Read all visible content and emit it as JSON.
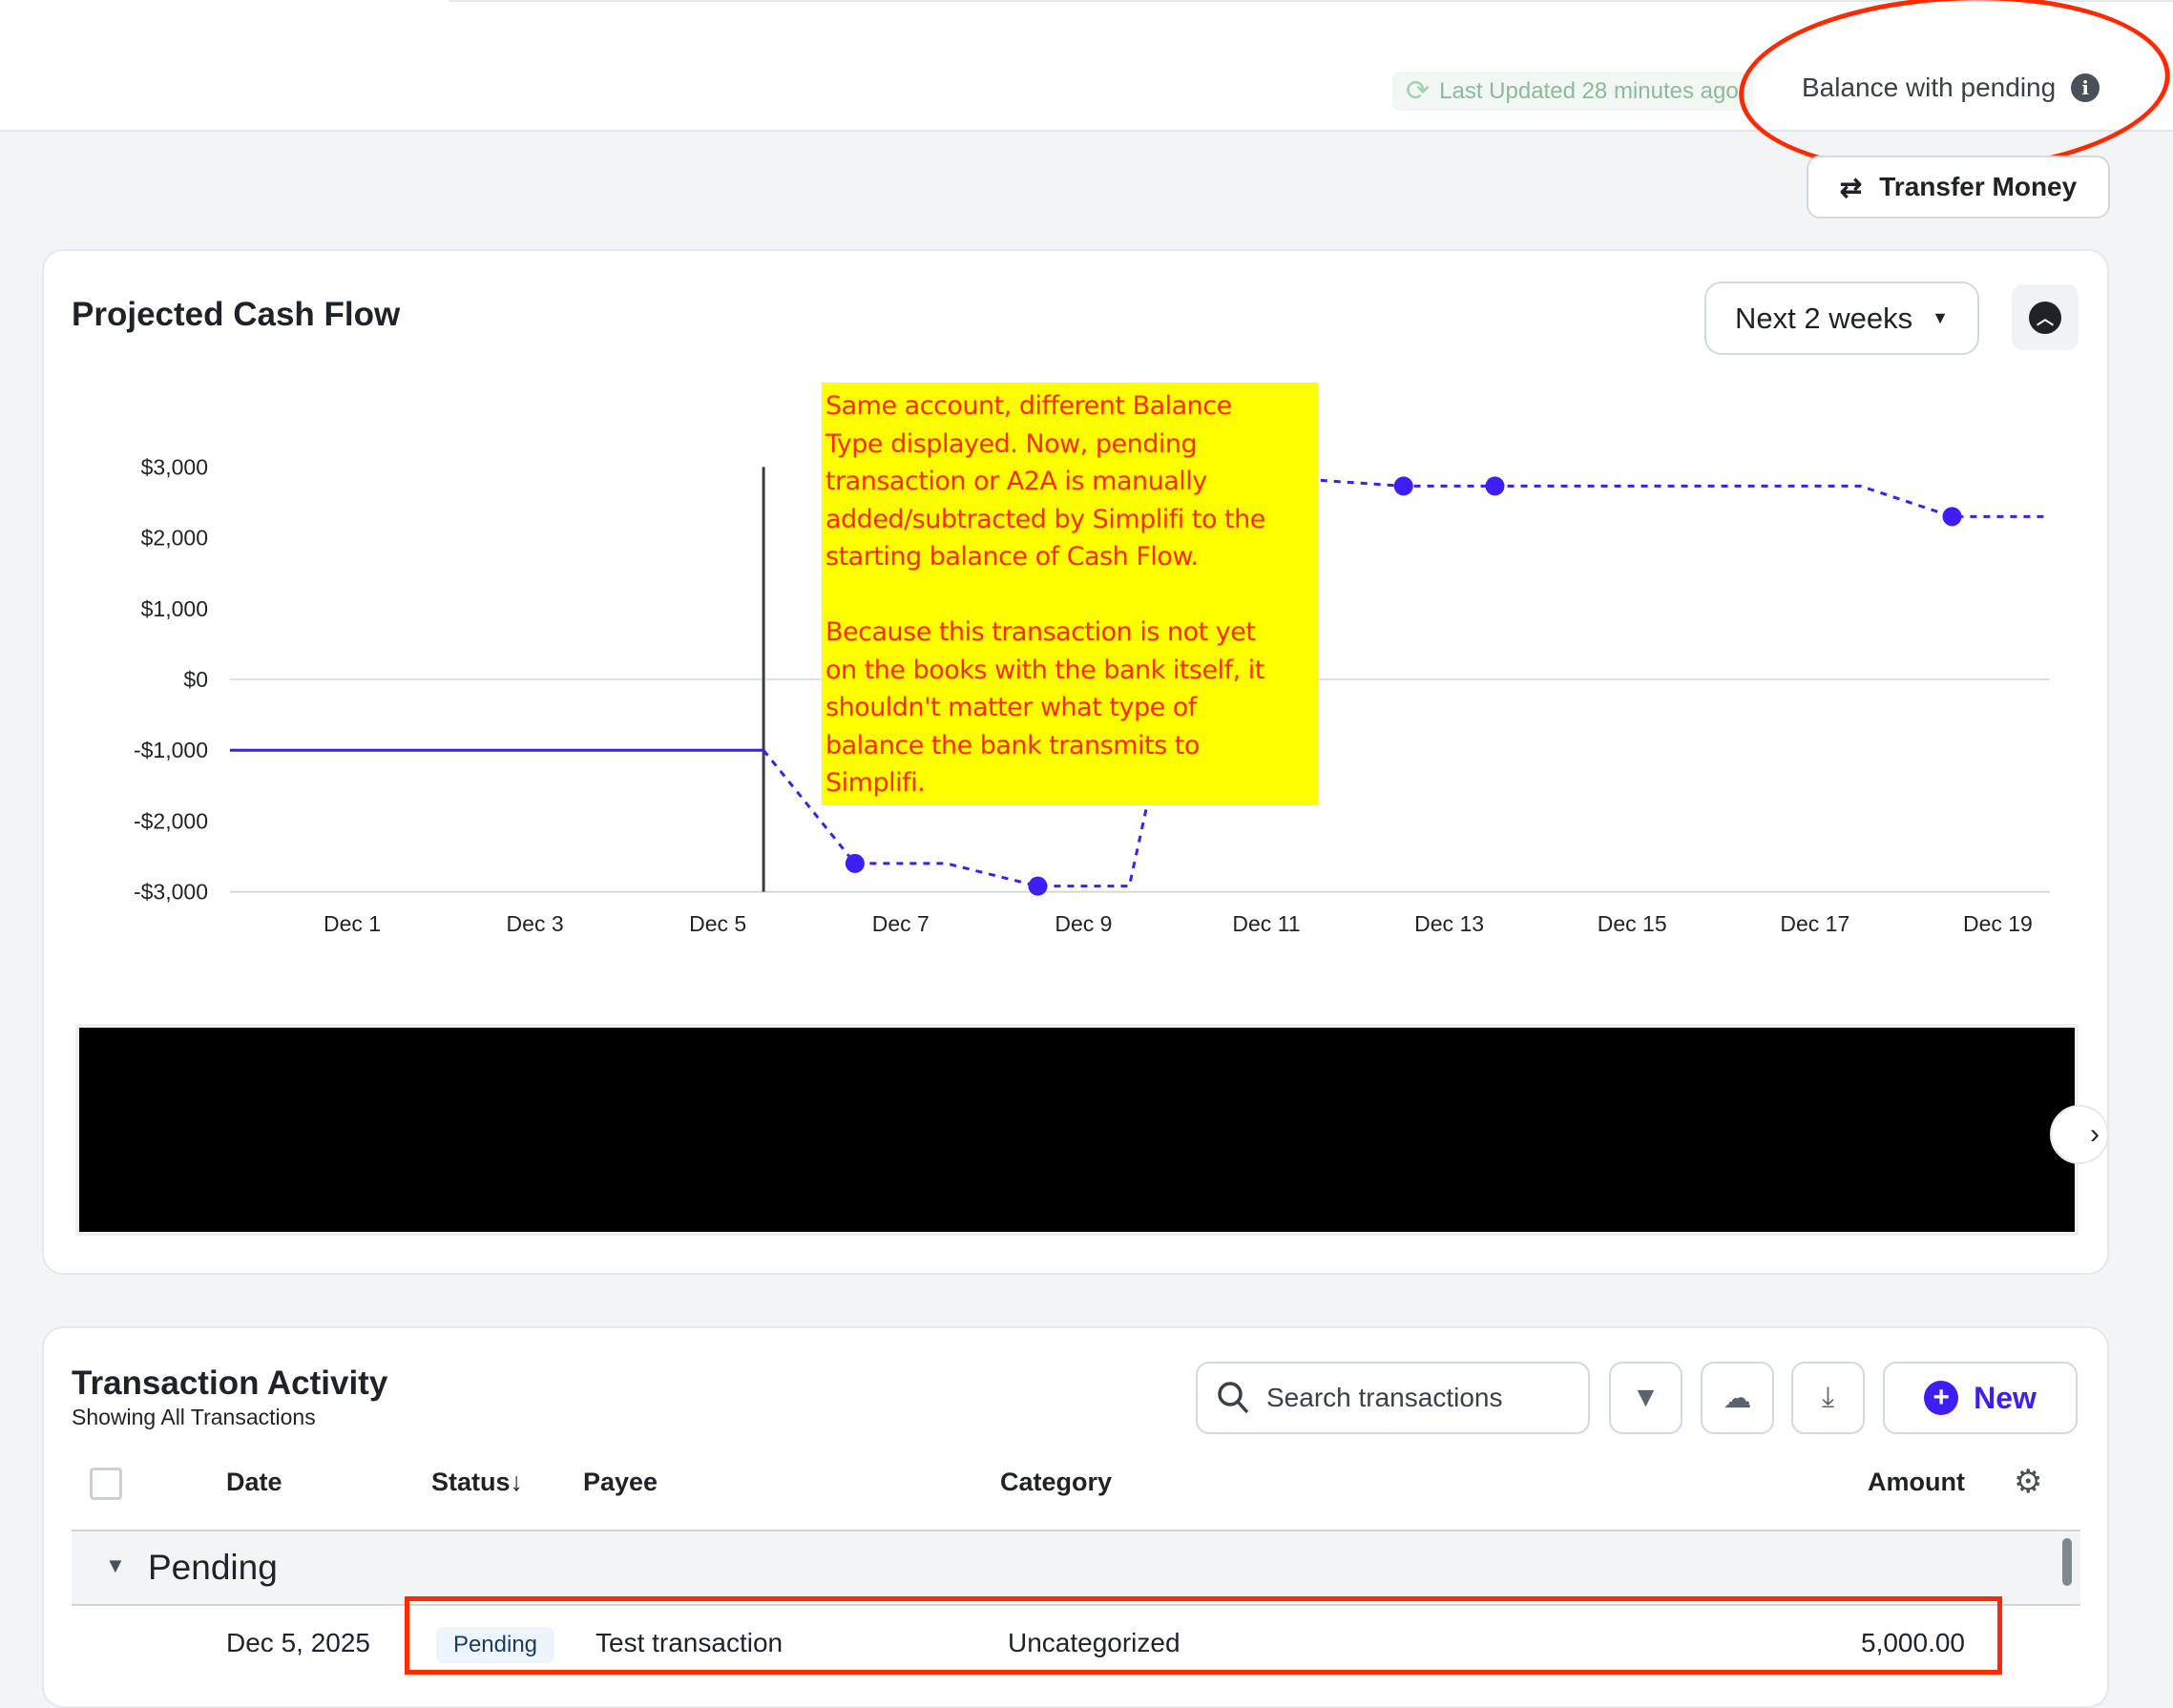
{
  "header": {
    "last_updated": "Last Updated 28 minutes ago",
    "balance_type": "Balance with pending",
    "info_icon": "info-icon",
    "transfer_label": "Transfer Money"
  },
  "cashflow": {
    "title": "Projected Cash Flow",
    "range_label": "Next 2 weeks",
    "annotation_lines": [
      "Same account, different Balance",
      "Type displayed. Now, pending",
      "transaction or A2A is manually",
      "added/subtracted by Simplifi to the",
      "starting balance of Cash Flow.",
      "",
      "Because this transaction is not yet",
      "on the books with the bank itself, it",
      "shouldn't matter what type of",
      "balance the bank transmits to",
      "Simplifi."
    ]
  },
  "chart_data": {
    "type": "line",
    "y_ticks": [
      "$3,000",
      "$2,000",
      "$1,000",
      "$0",
      "-$1,000",
      "-$2,000",
      "-$3,000"
    ],
    "y_tick_values": [
      3000,
      2000,
      1000,
      0,
      -1000,
      -2000,
      -3000
    ],
    "x_ticks": [
      "Dec 1",
      "Dec 3",
      "Dec 5",
      "Dec 7",
      "Dec 9",
      "Dec 11",
      "Dec 13",
      "Dec 15",
      "Dec 17",
      "Dec 19"
    ],
    "x_tick_days": [
      1,
      3,
      5,
      7,
      9,
      11,
      13,
      15,
      17,
      19
    ],
    "ylim": [
      -3000,
      3000
    ],
    "grid": "horizontal at $0 and -$3,000",
    "today_day": 5,
    "line_color": "#3d1ff5",
    "actual": [
      {
        "day": 5,
        "value": -1000
      }
    ],
    "projected": [
      {
        "day": 5,
        "value": -1000,
        "marker": false
      },
      {
        "day": 6,
        "value": -2600,
        "marker": true
      },
      {
        "day": 7,
        "value": -2600,
        "marker": false
      },
      {
        "day": 8,
        "value": -2920,
        "marker": true
      },
      {
        "day": 9,
        "value": -2920,
        "marker": false
      },
      {
        "day": 10,
        "value": 2950,
        "marker": false
      },
      {
        "day": 11,
        "value": 2820,
        "marker": false
      },
      {
        "day": 12,
        "value": 2730,
        "marker": true
      },
      {
        "day": 13,
        "value": 2730,
        "marker": true
      },
      {
        "day": 17,
        "value": 2730,
        "marker": false
      },
      {
        "day": 18,
        "value": 2300,
        "marker": true
      },
      {
        "day": 19.6,
        "value": 2300,
        "marker": false
      }
    ]
  },
  "transactions": {
    "title": "Transaction Activity",
    "subtitle": "Showing All Transactions",
    "search_placeholder": "Search transactions",
    "new_label": "New",
    "columns": {
      "date": "Date",
      "status": "Status",
      "payee": "Payee",
      "category": "Category",
      "amount": "Amount"
    },
    "sort_indicator": "↓",
    "group": "Pending",
    "rows": [
      {
        "date": "Dec 5, 2025",
        "status": "Pending",
        "payee": "Test transaction",
        "category": "Uncategorized",
        "amount": "5,000.00"
      }
    ]
  },
  "colors": {
    "accent": "#3d1ff5",
    "annotation": "#ff2a00",
    "note_bg": "#ffff00"
  }
}
